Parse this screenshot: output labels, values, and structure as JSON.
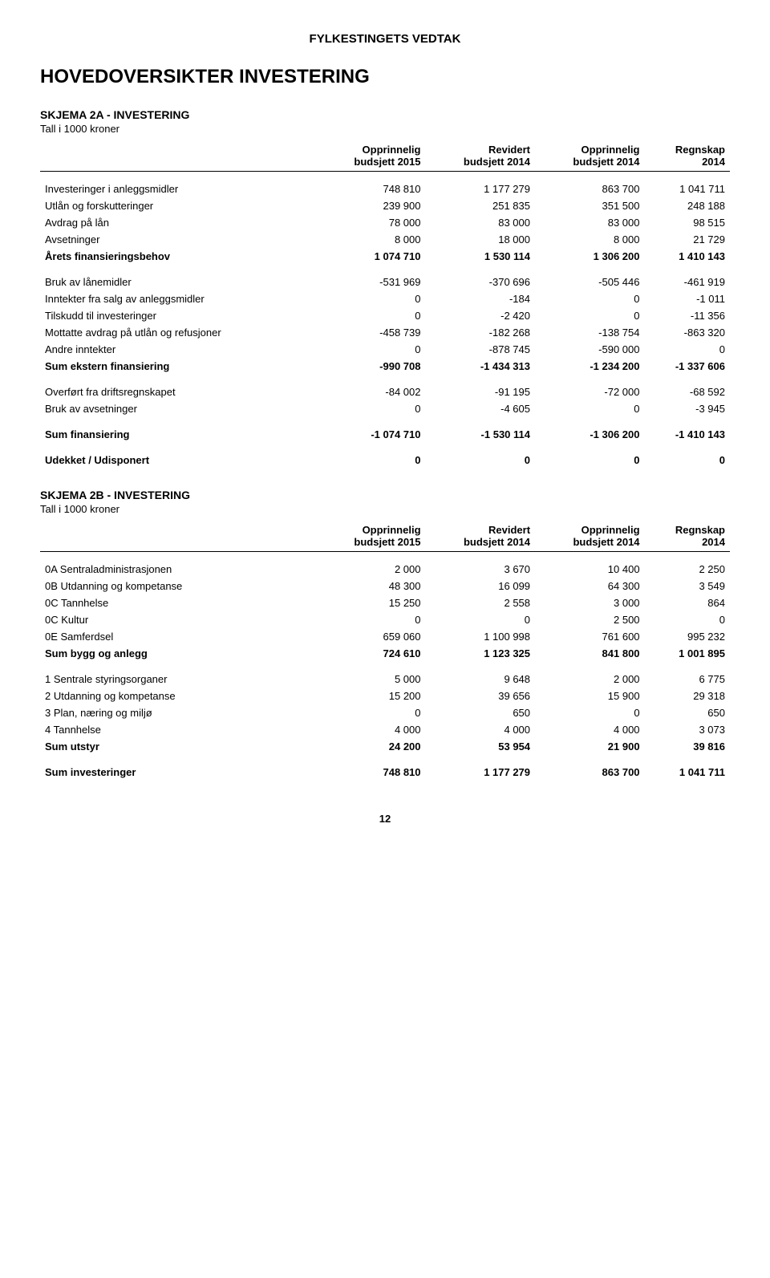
{
  "header": "FYLKESTINGETS VEDTAK",
  "mainTitle": "HOVEDOVERSIKTER INVESTERING",
  "pageNumber": "12",
  "columns": [
    {
      "l1": "Opprinnelig",
      "l2": "budsjett 2015"
    },
    {
      "l1": "Revidert",
      "l2": "budsjett 2014"
    },
    {
      "l1": "Opprinnelig",
      "l2": "budsjett 2014"
    },
    {
      "l1": "Regnskap",
      "l2": "2014"
    }
  ],
  "section2a": {
    "title": "SKJEMA 2A - INVESTERING",
    "subtitle": "Tall i 1000 kroner",
    "rows": [
      {
        "label": "Investeringer i anleggsmidler",
        "v": [
          "748 810",
          "1 177 279",
          "863 700",
          "1 041 711"
        ],
        "spacer": true
      },
      {
        "label": "Utlån og forskutteringer",
        "v": [
          "239 900",
          "251 835",
          "351 500",
          "248 188"
        ]
      },
      {
        "label": "Avdrag på lån",
        "v": [
          "78 000",
          "83 000",
          "83 000",
          "98 515"
        ]
      },
      {
        "label": "Avsetninger",
        "v": [
          "8 000",
          "18 000",
          "8 000",
          "21 729"
        ]
      },
      {
        "label": "Årets finansieringsbehov",
        "v": [
          "1 074 710",
          "1 530 114",
          "1 306 200",
          "1 410 143"
        ],
        "bold": true
      },
      {
        "label": "Bruk av lånemidler",
        "v": [
          "-531 969",
          "-370 696",
          "-505 446",
          "-461 919"
        ],
        "spacer": true
      },
      {
        "label": "Inntekter fra salg av anleggsmidler",
        "v": [
          "0",
          "-184",
          "0",
          "-1 011"
        ]
      },
      {
        "label": "Tilskudd til investeringer",
        "v": [
          "0",
          "-2 420",
          "0",
          "-11 356"
        ]
      },
      {
        "label": "Mottatte avdrag på utlån og refusjoner",
        "v": [
          "-458 739",
          "-182 268",
          "-138 754",
          "-863 320"
        ]
      },
      {
        "label": "Andre inntekter",
        "v": [
          "0",
          "-878 745",
          "-590 000",
          "0"
        ]
      },
      {
        "label": "Sum ekstern finansiering",
        "v": [
          "-990 708",
          "-1 434 313",
          "-1 234 200",
          "-1 337 606"
        ],
        "bold": true
      },
      {
        "label": "Overført fra driftsregnskapet",
        "v": [
          "-84 002",
          "-91 195",
          "-72 000",
          "-68 592"
        ],
        "spacer": true
      },
      {
        "label": "Bruk av avsetninger",
        "v": [
          "0",
          "-4 605",
          "0",
          "-3 945"
        ]
      },
      {
        "label": "Sum finansiering",
        "v": [
          "-1 074 710",
          "-1 530 114",
          "-1 306 200",
          "-1 410 143"
        ],
        "bold": true,
        "spacer": true
      },
      {
        "label": "Udekket / Udisponert",
        "v": [
          "0",
          "0",
          "0",
          "0"
        ],
        "bold": true,
        "spacer": true
      }
    ]
  },
  "section2b": {
    "title": "SKJEMA 2B - INVESTERING",
    "subtitle": "Tall i 1000 kroner",
    "rows": [
      {
        "label": "0A Sentraladministrasjonen",
        "v": [
          "2 000",
          "3 670",
          "10 400",
          "2 250"
        ],
        "spacer": true
      },
      {
        "label": "0B Utdanning og kompetanse",
        "v": [
          "48 300",
          "16 099",
          "64 300",
          "3 549"
        ]
      },
      {
        "label": "0C Tannhelse",
        "v": [
          "15 250",
          "2 558",
          "3 000",
          "864"
        ]
      },
      {
        "label": "0C Kultur",
        "v": [
          "0",
          "0",
          "2 500",
          "0"
        ]
      },
      {
        "label": "0E Samferdsel",
        "v": [
          "659 060",
          "1 100 998",
          "761 600",
          "995 232"
        ]
      },
      {
        "label": "Sum bygg og anlegg",
        "v": [
          "724 610",
          "1 123 325",
          "841 800",
          "1 001 895"
        ],
        "bold": true
      },
      {
        "label": "1 Sentrale styringsorganer",
        "v": [
          "5 000",
          "9 648",
          "2 000",
          "6 775"
        ],
        "spacer": true
      },
      {
        "label": "2 Utdanning og kompetanse",
        "v": [
          "15 200",
          "39 656",
          "15 900",
          "29 318"
        ]
      },
      {
        "label": "3 Plan, næring og miljø",
        "v": [
          "0",
          "650",
          "0",
          "650"
        ]
      },
      {
        "label": "4 Tannhelse",
        "v": [
          "4 000",
          "4 000",
          "4 000",
          "3 073"
        ]
      },
      {
        "label": "Sum utstyr",
        "v": [
          "24 200",
          "53 954",
          "21 900",
          "39 816"
        ],
        "bold": true
      },
      {
        "label": "Sum investeringer",
        "v": [
          "748 810",
          "1 177 279",
          "863 700",
          "1 041 711"
        ],
        "bold": true,
        "spacer": true
      }
    ]
  }
}
